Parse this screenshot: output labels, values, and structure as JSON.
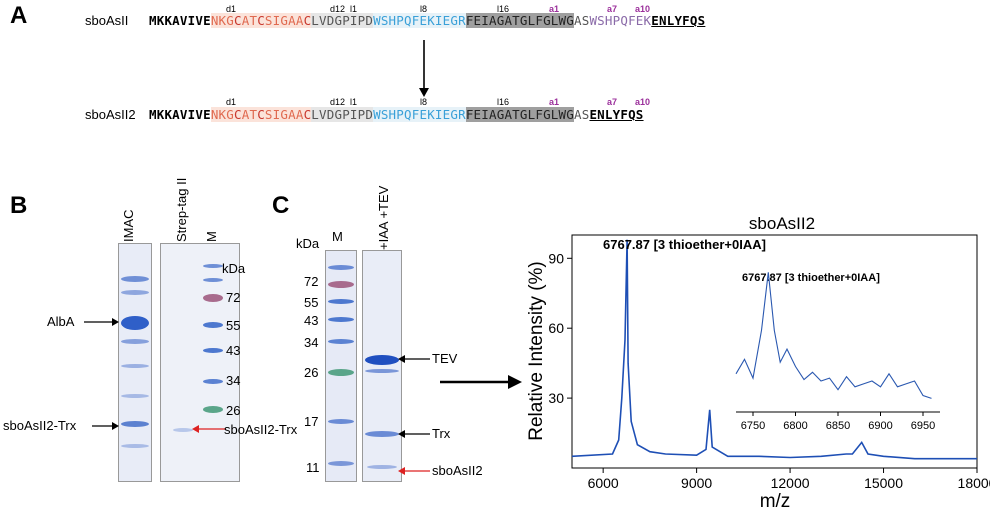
{
  "panels": {
    "a": "A",
    "b": "B",
    "c": "C"
  },
  "panel_a": {
    "row1": {
      "name": "sboAsII",
      "segments": {
        "leader_bold": "MKKAVIVE",
        "d_n": "NKG",
        "d_c1": "C",
        "d_at": "AT",
        "d_c2": "C",
        "d_sig": "SIGAA",
        "d_c3": "C",
        "grey": "LVDGPIPD",
        "blue": "WSHPQFEKIEGR",
        "dark": "FEIAGATGLFGLWG",
        "as": "AS",
        "purple": "WSHPQFEK",
        "tev": "ENLYFQS"
      }
    },
    "row2": {
      "name": "sboAsII2",
      "segments": {
        "leader_bold": "MKKAVIVE",
        "d_n": "NKG",
        "d_c1": "C",
        "d_at": "AT",
        "d_c2": "C",
        "d_sig": "SIGAA",
        "d_c3": "C",
        "grey": "LVDGPIPD",
        "blue": "WSHPQFEKIEGR",
        "dark": "FEIAGATGLFGLWG",
        "as": "AS",
        "tev": "ENLYFQS"
      }
    },
    "marks": {
      "d1": "d1",
      "d12": "d12",
      "l1": "l1",
      "l8": "l8",
      "l16": "l16",
      "a1": "a1",
      "a7": "a7",
      "a10": "a10"
    }
  },
  "panel_b": {
    "lanes": [
      "IMAC",
      "Strep-tag II",
      "M"
    ],
    "kda_label": "kDa",
    "mw_markers": [
      "72",
      "55",
      "43",
      "34",
      "26"
    ],
    "arrow_labels": {
      "alba": "AlbA",
      "trx_left": "sboAsII2-Trx",
      "trx_right": "sboAsII2-Trx"
    }
  },
  "panel_c": {
    "kda_label": "kDa",
    "lanes": [
      "M",
      "+IAA +TEV"
    ],
    "mw_markers": [
      "72",
      "55",
      "43",
      "34",
      "26",
      "17",
      "11"
    ],
    "arrow_labels": {
      "tev": "TEV",
      "trx": "Trx",
      "sbo": "sboAsII2"
    }
  },
  "chart_data": {
    "type": "line",
    "title": "sboAsII2",
    "xlabel": "m/z",
    "ylabel": "Relative Intensity (%)",
    "xlim": [
      5000,
      18000
    ],
    "ylim": [
      0,
      100
    ],
    "xticks": [
      "6000",
      "9000",
      "12000",
      "15000",
      "18000"
    ],
    "yticks": [
      "30",
      "60",
      "90"
    ],
    "peak_annotation": "6767.87 [3 thioether+0IAA]",
    "series": [
      {
        "x": [
          5000,
          6300,
          6500,
          6600,
          6700,
          6768,
          6800,
          6900,
          7100,
          7500,
          8000,
          9000,
          9300,
          9420,
          9500,
          10000,
          11000,
          12000,
          13000,
          13800,
          14000,
          14300,
          14500,
          15000,
          16000,
          17000,
          18000
        ],
        "y": [
          5,
          6,
          12,
          30,
          55,
          98,
          45,
          20,
          10,
          7,
          6,
          5.5,
          8,
          25,
          9,
          5,
          5,
          4.5,
          5,
          6,
          6,
          11,
          6,
          5,
          4,
          4,
          4
        ]
      }
    ],
    "inset": {
      "xlim": [
        6730,
        6970
      ],
      "xticks": [
        "6750",
        "6800",
        "6850",
        "6900",
        "6950"
      ],
      "annotation": "6767.87 [3 thioether+0IAA]",
      "series": [
        {
          "x": [
            6730,
            6740,
            6750,
            6760,
            6768,
            6775,
            6782,
            6790,
            6800,
            6810,
            6820,
            6830,
            6840,
            6850,
            6860,
            6870,
            6880,
            6890,
            6900,
            6910,
            6920,
            6930,
            6940,
            6950,
            6960
          ],
          "y": [
            25,
            35,
            22,
            55,
            95,
            55,
            33,
            42,
            30,
            21,
            26,
            20,
            22,
            14,
            23,
            16,
            18,
            20,
            16,
            25,
            16,
            18,
            20,
            10,
            8
          ]
        }
      ]
    }
  }
}
